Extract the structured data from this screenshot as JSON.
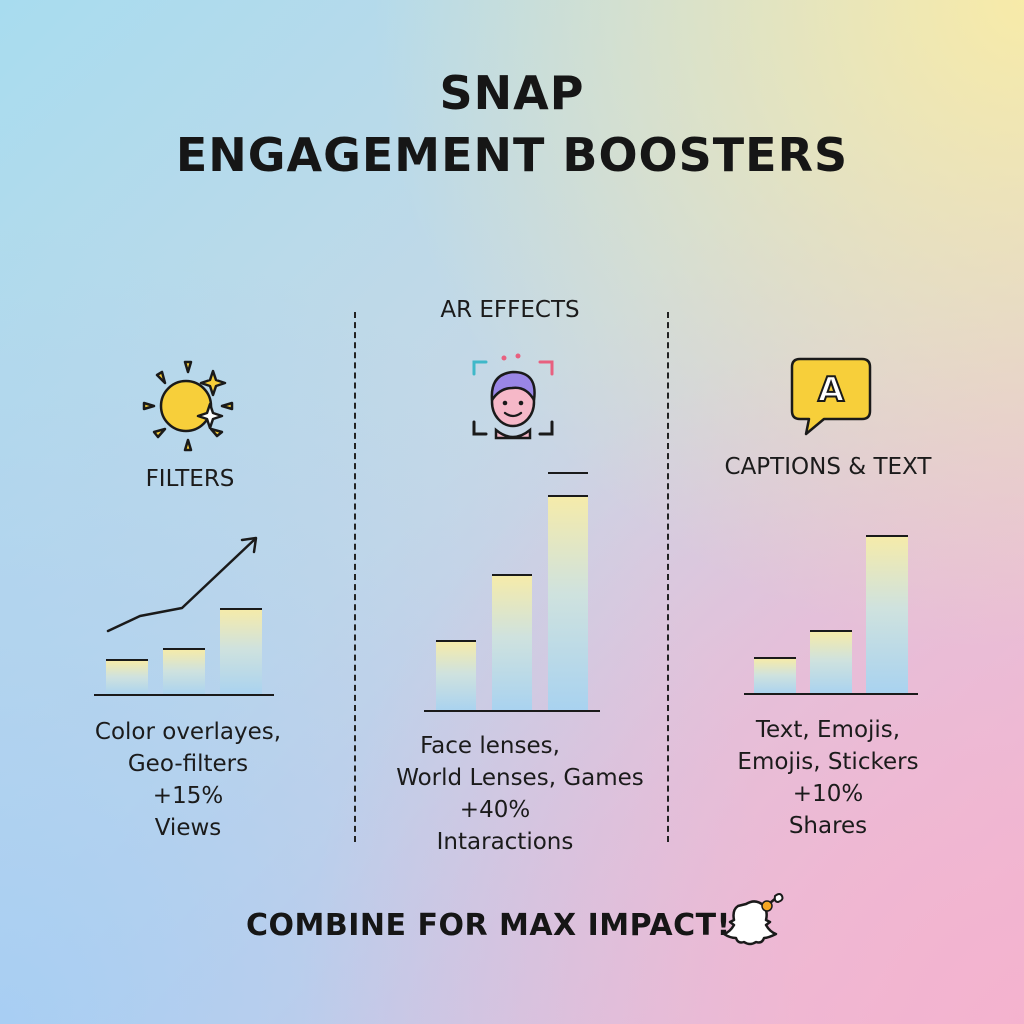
{
  "title": {
    "line1": "SNAP",
    "line2": "ENGAGEMENT BOOSTERS"
  },
  "colors": {
    "bar_top": "#f5ebaa",
    "bar_bottom": "#a8d2f0",
    "ink": "#1a1a1a",
    "sun": "#f7cf3a",
    "caption_bubble": "#f7cf3a",
    "face": "#f6b8c8",
    "hair": "#9a86e6"
  },
  "columns": [
    {
      "label": "FILTERS",
      "icon": "sun-icon",
      "caption": [
        "Color overlayes,",
        "Geo-filters",
        "+15%",
        "Views"
      ],
      "bars": [
        0.32,
        0.42,
        0.78
      ]
    },
    {
      "label": "AR EFFECTS",
      "icon": "ar-face-icon",
      "caption": [
        "Face lenses,",
        "World Lenses, Games",
        "+40%",
        "Intaractions"
      ],
      "bars": [
        0.31,
        0.6,
        0.95
      ]
    },
    {
      "label": "CAPTIONS & TEXT",
      "icon": "speech-bubble-a-icon",
      "icon_letter": "A",
      "caption": [
        "Text, Emojis,",
        "Emojis, Stickers",
        "+10%",
        "Shares"
      ],
      "bars": [
        0.23,
        0.4,
        1.0
      ]
    }
  ],
  "footer": {
    "text": "COMBINE FOR MAX IMPACT!",
    "icon": "snapchat-ghost-icon"
  }
}
